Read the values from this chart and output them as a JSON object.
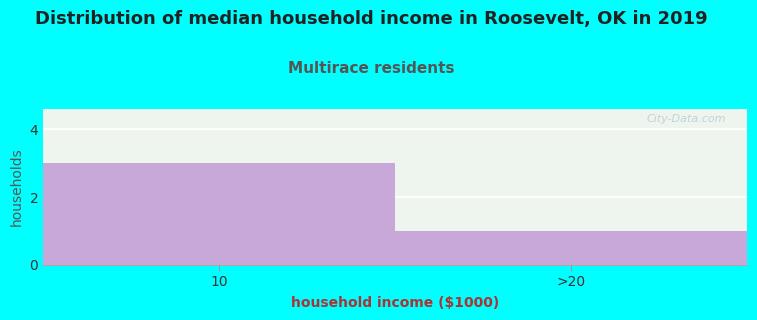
{
  "title": "Distribution of median household income in Roosevelt, OK in 2019",
  "subtitle": "Multirace residents",
  "categories": [
    "10",
    ">20"
  ],
  "values": [
    3,
    1
  ],
  "bar_color": "#c8a8d8",
  "background_color": "#00ffff",
  "plot_bg_color": "#eef5ee",
  "xlabel": "household income ($1000)",
  "ylabel": "households",
  "ylim": [
    0,
    4.6
  ],
  "yticks": [
    0,
    2,
    4
  ],
  "title_fontsize": 13,
  "subtitle_fontsize": 11,
  "subtitle_color": "#555555",
  "axis_label_fontsize": 10,
  "xlabel_color": "#aa3333",
  "watermark": "City-Data.com"
}
